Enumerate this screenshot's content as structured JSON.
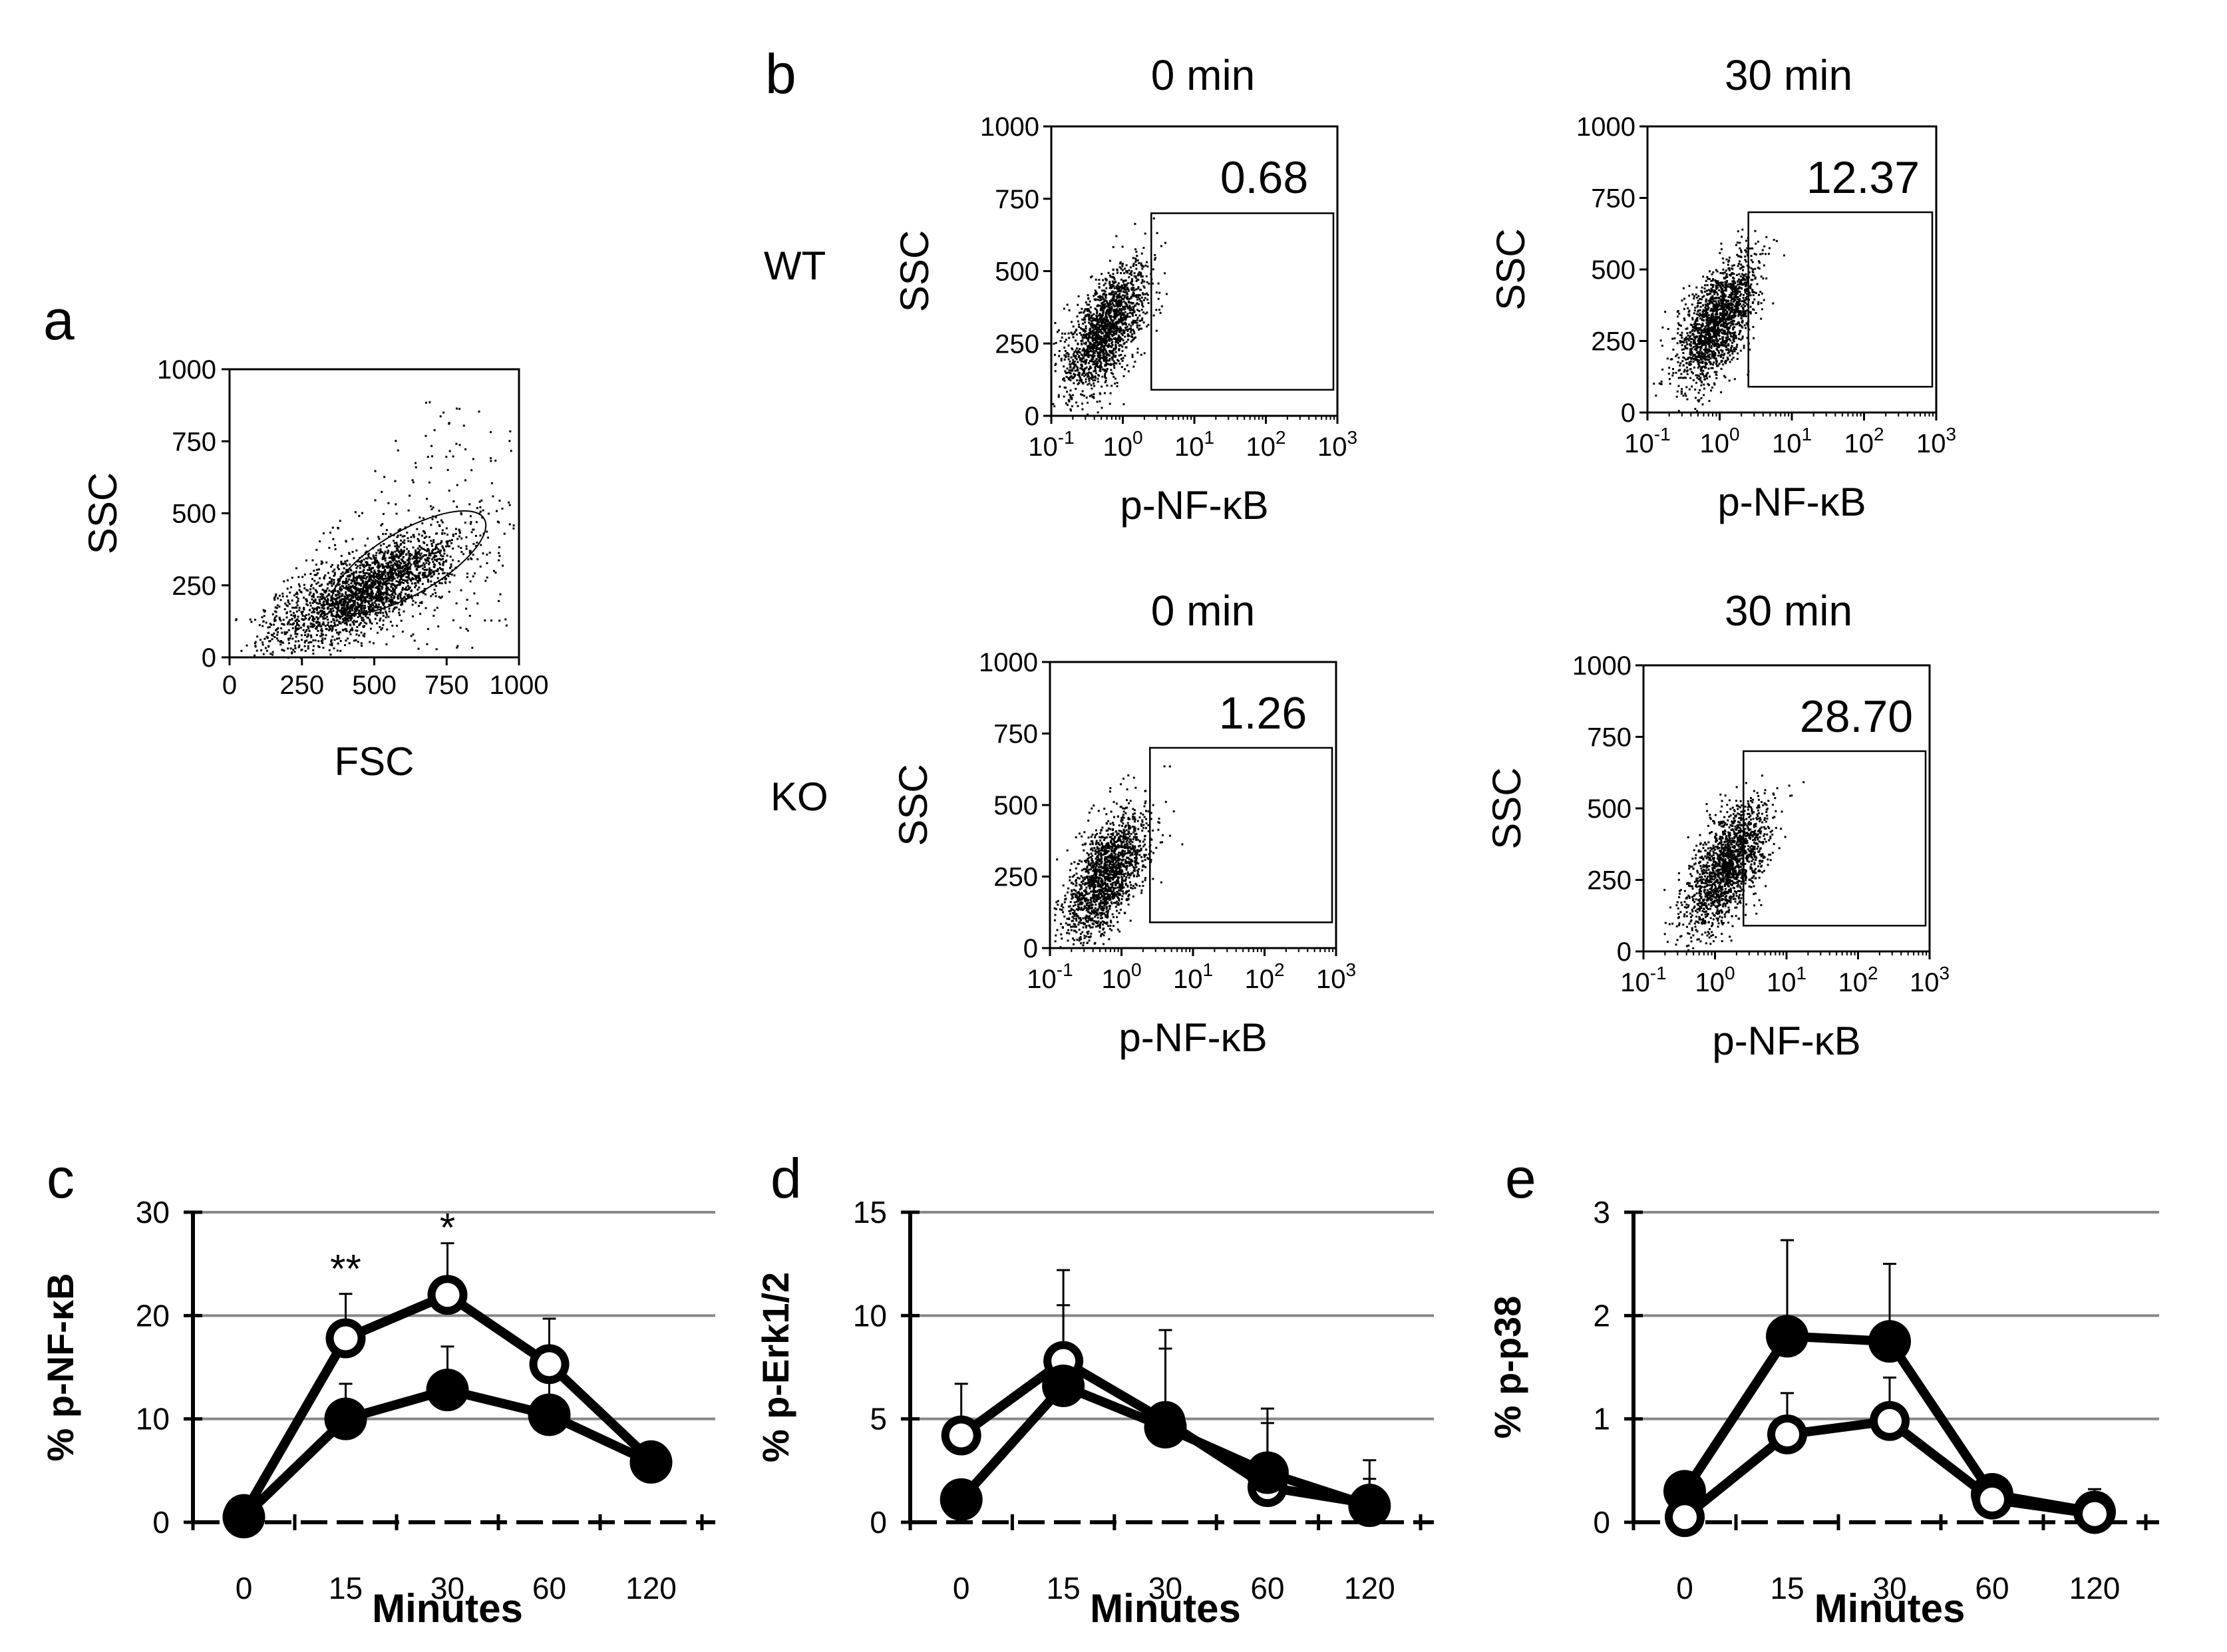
{
  "chart_data": [
    {
      "panel": "a",
      "type": "scatter",
      "xlabel": "FSC",
      "ylabel": "SSC",
      "xlim": [
        0,
        1000
      ],
      "ylim": [
        0,
        1000
      ],
      "xticks": [
        "0",
        "250",
        "500",
        "750",
        "1000"
      ],
      "yticks": [
        "0",
        "250",
        "500",
        "750",
        "1000"
      ],
      "cloud": {
        "center": [
          480,
          240
        ],
        "spread": [
          160,
          80
        ],
        "corr": 0.55
      },
      "gate": {
        "shape": "ellipse",
        "center": [
          620,
          330
        ],
        "radii": [
          300,
          110
        ],
        "angle_deg": -30
      }
    },
    {
      "panel": "b",
      "type": "scatter",
      "row_labels": [
        "WT",
        "KO"
      ],
      "xlabel": "p-NF-κB",
      "ylabel": "SSC",
      "xscale": "log",
      "xlim": [
        0.1,
        1000
      ],
      "ylim": [
        0,
        1000
      ],
      "xticks": [
        {
          "base": "10",
          "exp": "-1"
        },
        {
          "base": "10",
          "exp": "0"
        },
        {
          "base": "10",
          "exp": "1"
        },
        {
          "base": "10",
          "exp": "2"
        },
        {
          "base": "10",
          "exp": "3"
        }
      ],
      "yticks": [
        "0",
        "250",
        "500",
        "750",
        "1000"
      ],
      "gate": {
        "x": [
          2.5,
          1000
        ],
        "y": [
          90,
          700
        ]
      },
      "subplots": [
        {
          "row": "WT",
          "title": "0 min",
          "gate_percent": "0.68",
          "cloud_center": [
            0.55,
            300
          ]
        },
        {
          "row": "WT",
          "title": "30 min",
          "gate_percent": "12.37",
          "cloud_center": [
            0.9,
            320
          ]
        },
        {
          "row": "KO",
          "title": "0 min",
          "gate_percent": "1.26",
          "cloud_center": [
            0.6,
            260
          ]
        },
        {
          "row": "KO",
          "title": "30 min",
          "gate_percent": "28.70",
          "cloud_center": [
            1.4,
            300
          ]
        }
      ]
    },
    {
      "panel": "c",
      "type": "line",
      "categories": [
        "0",
        "15",
        "30",
        "60",
        "120"
      ],
      "xlabel": "Minutes",
      "ylabel": "% p-NF-κB",
      "ylim": [
        0,
        30
      ],
      "yticks": [
        "0",
        "10",
        "20",
        "30"
      ],
      "significance": [
        {
          "category": "15",
          "label": "**",
          "y": 24.5
        },
        {
          "category": "30",
          "label": "*",
          "y": 28.5
        }
      ],
      "series": [
        {
          "marker": "open",
          "values": [
            0.8,
            17.8,
            22.0,
            15.3,
            6.0
          ],
          "error": [
            0.3,
            4.3,
            5.0,
            4.4,
            0.8
          ]
        },
        {
          "marker": "filled",
          "values": [
            0.5,
            10.0,
            12.8,
            10.4,
            5.8
          ],
          "error": [
            0.3,
            3.4,
            4.2,
            3.3,
            0.8
          ]
        }
      ]
    },
    {
      "panel": "d",
      "type": "line",
      "categories": [
        "0",
        "15",
        "30",
        "60",
        "120"
      ],
      "xlabel": "Minutes",
      "ylabel": "% p-Erk1/2",
      "ylim": [
        0,
        15
      ],
      "yticks": [
        "0",
        "5",
        "10",
        "15"
      ],
      "series": [
        {
          "marker": "open",
          "values": [
            4.2,
            7.8,
            4.9,
            1.7,
            0.9
          ],
          "error": [
            2.5,
            4.4,
            4.4,
            3.8,
            2.1
          ]
        },
        {
          "marker": "filled",
          "values": [
            1.1,
            6.6,
            4.6,
            2.4,
            0.8
          ],
          "error": [
            0.3,
            3.9,
            3.8,
            2.4,
            1.3
          ]
        }
      ]
    },
    {
      "panel": "e",
      "type": "line",
      "categories": [
        "0",
        "15",
        "30",
        "60",
        "120"
      ],
      "xlabel": "Minutes",
      "ylabel": "% p-p38",
      "ylim": [
        0,
        3
      ],
      "yticks": [
        "0",
        "1",
        "2",
        "3"
      ],
      "series": [
        {
          "marker": "filled",
          "values": [
            0.3,
            1.8,
            1.75,
            0.27,
            0.1
          ],
          "error": [
            0.1,
            0.93,
            0.75,
            0.1,
            0.22
          ]
        },
        {
          "marker": "open",
          "values": [
            0.05,
            0.85,
            0.98,
            0.22,
            0.08
          ],
          "error": [
            0.05,
            0.4,
            0.42,
            0.08,
            0.08
          ]
        }
      ]
    }
  ]
}
